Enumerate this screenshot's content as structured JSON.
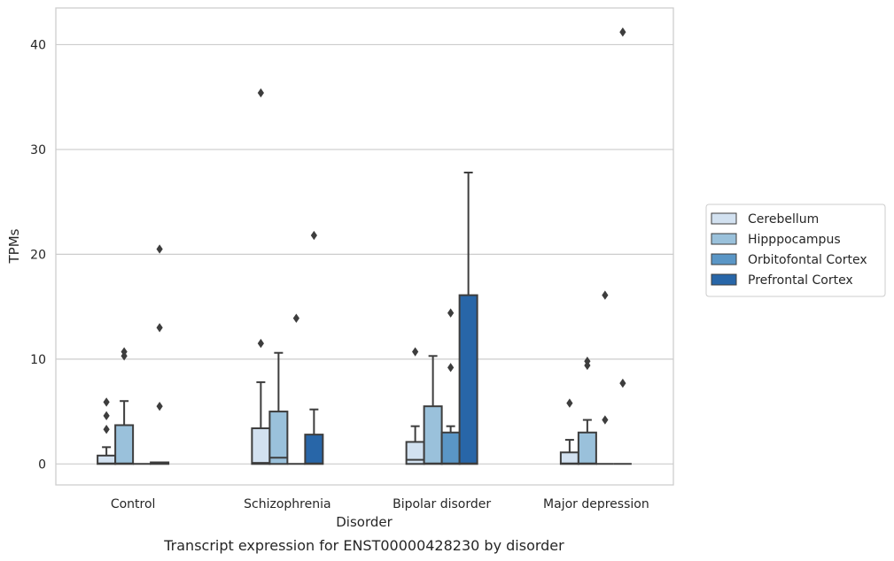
{
  "chart_data": {
    "type": "box",
    "title": "",
    "caption": "Transcript expression for ENST00000428230 by disorder",
    "xlabel": "Disorder",
    "ylabel": "TPMs",
    "ylim": [
      -2,
      43.5
    ],
    "yticks": [
      0,
      10,
      20,
      30,
      40
    ],
    "grid": "horizontal",
    "legend_position": "right",
    "categories": [
      "Control",
      "Schizophrenia",
      "Bipolar disorder",
      "Major depression"
    ],
    "series": [
      {
        "name": "Cerebellum",
        "color": "#d2e1f0",
        "boxes": [
          {
            "q1": 0.0,
            "median": 0.05,
            "q3": 0.8,
            "whisker_low": 0.0,
            "whisker_high": 1.6,
            "outliers": [
              3.3,
              4.6,
              5.9
            ]
          },
          {
            "q1": 0.0,
            "median": 0.1,
            "q3": 3.4,
            "whisker_low": 0.0,
            "whisker_high": 7.8,
            "outliers": [
              11.5,
              35.4
            ]
          },
          {
            "q1": 0.0,
            "median": 0.4,
            "q3": 2.1,
            "whisker_low": 0.0,
            "whisker_high": 3.6,
            "outliers": [
              10.7
            ]
          },
          {
            "q1": 0.0,
            "median": 0.05,
            "q3": 1.1,
            "whisker_low": 0.0,
            "whisker_high": 2.3,
            "outliers": [
              5.8
            ]
          }
        ]
      },
      {
        "name": "Hipppocampus",
        "color": "#9ac1db",
        "boxes": [
          {
            "q1": 0.0,
            "median": 0.05,
            "q3": 3.7,
            "whisker_low": 0.0,
            "whisker_high": 6.0,
            "outliers": [
              10.3,
              10.7
            ]
          },
          {
            "q1": 0.0,
            "median": 0.6,
            "q3": 5.0,
            "whisker_low": 0.0,
            "whisker_high": 10.6,
            "outliers": []
          },
          {
            "q1": 0.0,
            "median": 0.05,
            "q3": 5.5,
            "whisker_low": 0.0,
            "whisker_high": 10.3,
            "outliers": []
          },
          {
            "q1": 0.0,
            "median": 0.05,
            "q3": 3.0,
            "whisker_low": 0.0,
            "whisker_high": 4.2,
            "outliers": [
              9.4,
              9.8
            ]
          }
        ]
      },
      {
        "name": "Orbitofontal Cortex",
        "color": "#5a96c6",
        "boxes": [
          {
            "q1": 0.0,
            "median": 0.0,
            "q3": 0.0,
            "whisker_low": 0.0,
            "whisker_high": 0.0,
            "outliers": []
          },
          {
            "q1": 0.0,
            "median": 0.0,
            "q3": 0.0,
            "whisker_low": 0.0,
            "whisker_high": 0.0,
            "outliers": [
              13.9
            ]
          },
          {
            "q1": 0.0,
            "median": 0.05,
            "q3": 3.0,
            "whisker_low": 0.0,
            "whisker_high": 3.6,
            "outliers": [
              9.2,
              14.4
            ]
          },
          {
            "q1": 0.0,
            "median": 0.0,
            "q3": 0.0,
            "whisker_low": 0.0,
            "whisker_high": 0.0,
            "outliers": [
              4.2,
              16.1
            ]
          }
        ]
      },
      {
        "name": "Prefrontal Cortex",
        "color": "#2866a8",
        "boxes": [
          {
            "q1": 0.0,
            "median": 0.05,
            "q3": 0.15,
            "whisker_low": 0.0,
            "whisker_high": 0.15,
            "outliers": [
              5.5,
              13.0,
              20.5
            ]
          },
          {
            "q1": 0.0,
            "median": 0.05,
            "q3": 2.8,
            "whisker_low": 0.0,
            "whisker_high": 5.2,
            "outliers": [
              21.8
            ]
          },
          {
            "q1": 0.0,
            "median": 0.05,
            "q3": 16.1,
            "whisker_low": 0.0,
            "whisker_high": 27.8,
            "outliers": []
          },
          {
            "q1": 0.0,
            "median": 0.0,
            "q3": 0.0,
            "whisker_low": 0.0,
            "whisker_high": 0.0,
            "outliers": [
              7.7,
              41.2
            ]
          }
        ]
      }
    ]
  }
}
